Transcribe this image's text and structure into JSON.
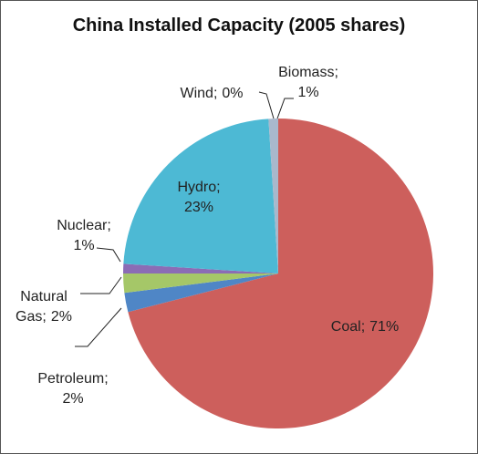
{
  "chart_data": {
    "type": "pie",
    "title": "China Installed Capacity (2005 shares)",
    "categories": [
      "Coal;",
      "Petroleum;",
      "Natural Gas;",
      "Nuclear;",
      "Hydro;",
      "Wind;",
      "Biomass;"
    ],
    "values": [
      71,
      2,
      2,
      1,
      23,
      0,
      1
    ],
    "value_labels": [
      "71%",
      "2%",
      "2%",
      "1%",
      "23%",
      "0%",
      "1%"
    ],
    "colors": [
      "#cd5f5c",
      "#4f86c6",
      "#a5c768",
      "#8b6cb5",
      "#4db9d4",
      "#f79646",
      "#a9b8cc"
    ]
  }
}
